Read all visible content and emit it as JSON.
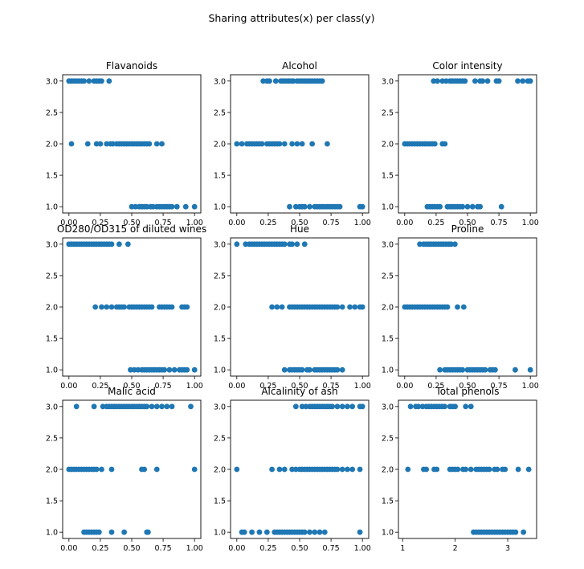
{
  "suptitle": "Sharing attributes(x) per class(y)",
  "colors": {
    "marker": "#1f77b4"
  },
  "chart_data": [
    {
      "type": "scatter",
      "title": "Flavanoids",
      "xlim": [
        -0.05,
        1.05
      ],
      "ylim": [
        0.9,
        3.1
      ],
      "xticks": [
        0.0,
        0.25,
        0.5,
        0.75,
        1.0
      ],
      "xtick_labels": [
        "0.00",
        "0.25",
        "0.50",
        "0.75",
        "1.00"
      ],
      "yticks": [
        1.0,
        1.5,
        2.0,
        2.5,
        3.0
      ],
      "ytick_labels": [
        "1.0",
        "1.5",
        "2.0",
        "2.5",
        "3.0"
      ],
      "series": [
        {
          "y": 3,
          "x": [
            0.0,
            0.02,
            0.04,
            0.06,
            0.08,
            0.1,
            0.12,
            0.16,
            0.2,
            0.22,
            0.24,
            0.26,
            0.32
          ]
        },
        {
          "y": 2,
          "x": [
            0.02,
            0.15,
            0.22,
            0.25,
            0.3,
            0.33,
            0.35,
            0.38,
            0.4,
            0.42,
            0.44,
            0.46,
            0.48,
            0.5,
            0.52,
            0.54,
            0.56,
            0.58,
            0.6,
            0.62,
            0.64,
            0.7,
            0.74
          ]
        },
        {
          "y": 1,
          "x": [
            0.5,
            0.53,
            0.56,
            0.58,
            0.6,
            0.62,
            0.65,
            0.67,
            0.7,
            0.72,
            0.74,
            0.76,
            0.78,
            0.8,
            0.82,
            0.86,
            0.93,
            1.0
          ]
        }
      ]
    },
    {
      "type": "scatter",
      "title": "Alcohol",
      "xlim": [
        -0.05,
        1.05
      ],
      "ylim": [
        0.9,
        3.1
      ],
      "xticks": [
        0.0,
        0.25,
        0.5,
        0.75,
        1.0
      ],
      "xtick_labels": [
        "0.00",
        "0.25",
        "0.50",
        "0.75",
        "1.00"
      ],
      "yticks": [
        1.0,
        1.5,
        2.0,
        2.5,
        3.0
      ],
      "ytick_labels": [
        "1.0",
        "1.5",
        "2.0",
        "2.5",
        "3.0"
      ],
      "series": [
        {
          "y": 3,
          "x": [
            0.21,
            0.24,
            0.26,
            0.31,
            0.35,
            0.37,
            0.39,
            0.41,
            0.43,
            0.45,
            0.48,
            0.5,
            0.52,
            0.54,
            0.56,
            0.58,
            0.6,
            0.62,
            0.64,
            0.66,
            0.68
          ]
        },
        {
          "y": 2,
          "x": [
            0.0,
            0.04,
            0.08,
            0.1,
            0.12,
            0.14,
            0.16,
            0.18,
            0.2,
            0.24,
            0.26,
            0.28,
            0.3,
            0.32,
            0.34,
            0.38,
            0.44,
            0.48,
            0.52,
            0.6,
            0.72
          ]
        },
        {
          "y": 1,
          "x": [
            0.42,
            0.47,
            0.5,
            0.52,
            0.54,
            0.58,
            0.62,
            0.64,
            0.66,
            0.68,
            0.7,
            0.72,
            0.74,
            0.76,
            0.78,
            0.8,
            0.82,
            0.98,
            1.0
          ]
        }
      ]
    },
    {
      "type": "scatter",
      "title": "Color intensity",
      "xlim": [
        -0.05,
        1.05
      ],
      "ylim": [
        0.9,
        3.1
      ],
      "xticks": [
        0.0,
        0.25,
        0.5,
        0.75,
        1.0
      ],
      "xtick_labels": [
        "0.00",
        "0.25",
        "0.50",
        "0.75",
        "1.00"
      ],
      "yticks": [
        1.0,
        1.5,
        2.0,
        2.5,
        3.0
      ],
      "ytick_labels": [
        "1.0",
        "1.5",
        "2.0",
        "2.5",
        "3.0"
      ],
      "series": [
        {
          "y": 3,
          "x": [
            0.23,
            0.26,
            0.3,
            0.33,
            0.36,
            0.38,
            0.4,
            0.42,
            0.44,
            0.46,
            0.48,
            0.56,
            0.6,
            0.62,
            0.66,
            0.73,
            0.75,
            0.9,
            0.94,
            0.98,
            1.0
          ]
        },
        {
          "y": 2,
          "x": [
            0.0,
            0.02,
            0.04,
            0.06,
            0.08,
            0.1,
            0.12,
            0.14,
            0.16,
            0.18,
            0.2,
            0.22,
            0.24,
            0.3,
            0.32
          ]
        },
        {
          "y": 1,
          "x": [
            0.18,
            0.2,
            0.22,
            0.24,
            0.26,
            0.28,
            0.34,
            0.36,
            0.38,
            0.4,
            0.42,
            0.44,
            0.46,
            0.5,
            0.54,
            0.58,
            0.6,
            0.77
          ]
        }
      ]
    },
    {
      "type": "scatter",
      "title": "OD280/OD315 of diluted wines",
      "xlim": [
        -0.05,
        1.05
      ],
      "ylim": [
        0.9,
        3.1
      ],
      "xticks": [
        0.0,
        0.25,
        0.5,
        0.75,
        1.0
      ],
      "xtick_labels": [
        "0.00",
        "0.25",
        "0.50",
        "0.75",
        "1.00"
      ],
      "yticks": [
        1.0,
        1.5,
        2.0,
        2.5,
        3.0
      ],
      "ytick_labels": [
        "1.0",
        "1.5",
        "2.0",
        "2.5",
        "3.0"
      ],
      "series": [
        {
          "y": 3,
          "x": [
            0.0,
            0.02,
            0.04,
            0.06,
            0.08,
            0.1,
            0.12,
            0.14,
            0.16,
            0.18,
            0.2,
            0.22,
            0.24,
            0.26,
            0.28,
            0.3,
            0.32,
            0.34,
            0.4,
            0.47
          ]
        },
        {
          "y": 2,
          "x": [
            0.21,
            0.26,
            0.3,
            0.34,
            0.38,
            0.4,
            0.42,
            0.44,
            0.48,
            0.5,
            0.52,
            0.54,
            0.56,
            0.58,
            0.6,
            0.62,
            0.64,
            0.66,
            0.72,
            0.74,
            0.76,
            0.78,
            0.8,
            0.82,
            0.9,
            0.92,
            0.94
          ]
        },
        {
          "y": 1,
          "x": [
            0.49,
            0.52,
            0.55,
            0.58,
            0.6,
            0.62,
            0.64,
            0.66,
            0.68,
            0.7,
            0.72,
            0.74,
            0.76,
            0.8,
            0.84,
            0.88,
            0.9,
            0.92,
            0.94,
            1.0
          ]
        }
      ]
    },
    {
      "type": "scatter",
      "title": "Hue",
      "xlim": [
        -0.05,
        1.05
      ],
      "ylim": [
        0.9,
        3.1
      ],
      "xticks": [
        0.0,
        0.25,
        0.5,
        0.75,
        1.0
      ],
      "xtick_labels": [
        "0.00",
        "0.25",
        "0.50",
        "0.75",
        "1.00"
      ],
      "yticks": [
        1.0,
        1.5,
        2.0,
        2.5,
        3.0
      ],
      "ytick_labels": [
        "1.0",
        "1.5",
        "2.0",
        "2.5",
        "3.0"
      ],
      "series": [
        {
          "y": 3,
          "x": [
            0.0,
            0.07,
            0.1,
            0.12,
            0.14,
            0.16,
            0.18,
            0.2,
            0.22,
            0.24,
            0.26,
            0.28,
            0.3,
            0.32,
            0.34,
            0.36,
            0.38,
            0.42,
            0.44,
            0.48,
            0.54
          ]
        },
        {
          "y": 2,
          "x": [
            0.28,
            0.32,
            0.36,
            0.42,
            0.44,
            0.46,
            0.48,
            0.5,
            0.52,
            0.54,
            0.56,
            0.58,
            0.6,
            0.62,
            0.64,
            0.66,
            0.68,
            0.7,
            0.72,
            0.74,
            0.76,
            0.78,
            0.8,
            0.84,
            0.9,
            0.94,
            0.98,
            1.0
          ]
        },
        {
          "y": 1,
          "x": [
            0.38,
            0.42,
            0.44,
            0.46,
            0.48,
            0.5,
            0.52,
            0.56,
            0.58,
            0.62,
            0.64,
            0.66,
            0.68,
            0.7,
            0.72,
            0.74,
            0.76,
            0.78,
            0.8,
            0.84
          ]
        }
      ]
    },
    {
      "type": "scatter",
      "title": "Proline",
      "xlim": [
        -0.05,
        1.05
      ],
      "ylim": [
        0.9,
        3.1
      ],
      "xticks": [
        0.0,
        0.25,
        0.5,
        0.75,
        1.0
      ],
      "xtick_labels": [
        "0.00",
        "0.25",
        "0.50",
        "0.75",
        "1.00"
      ],
      "yticks": [
        1.0,
        1.5,
        2.0,
        2.5,
        3.0
      ],
      "ytick_labels": [
        "1.0",
        "1.5",
        "2.0",
        "2.5",
        "3.0"
      ],
      "series": [
        {
          "y": 3,
          "x": [
            0.12,
            0.15,
            0.17,
            0.19,
            0.21,
            0.23,
            0.25,
            0.27,
            0.29,
            0.31,
            0.33,
            0.35,
            0.37,
            0.4
          ]
        },
        {
          "y": 2,
          "x": [
            0.0,
            0.02,
            0.04,
            0.06,
            0.08,
            0.1,
            0.12,
            0.14,
            0.16,
            0.18,
            0.2,
            0.22,
            0.24,
            0.26,
            0.28,
            0.3,
            0.32,
            0.34,
            0.42,
            0.47
          ]
        },
        {
          "y": 1,
          "x": [
            0.28,
            0.32,
            0.34,
            0.36,
            0.38,
            0.4,
            0.42,
            0.44,
            0.46,
            0.5,
            0.52,
            0.54,
            0.56,
            0.58,
            0.6,
            0.62,
            0.64,
            0.68,
            0.7,
            0.72,
            0.88,
            1.0
          ]
        }
      ]
    },
    {
      "type": "scatter",
      "title": "Malic acid",
      "xlim": [
        -0.05,
        1.05
      ],
      "ylim": [
        0.9,
        3.1
      ],
      "xticks": [
        0.0,
        0.25,
        0.5,
        0.75,
        1.0
      ],
      "xtick_labels": [
        "0.00",
        "0.25",
        "0.50",
        "0.75",
        "1.00"
      ],
      "yticks": [
        1.0,
        1.5,
        2.0,
        2.5,
        3.0
      ],
      "ytick_labels": [
        "1.0",
        "1.5",
        "2.0",
        "2.5",
        "3.0"
      ],
      "series": [
        {
          "y": 3,
          "x": [
            0.06,
            0.2,
            0.27,
            0.3,
            0.32,
            0.34,
            0.36,
            0.38,
            0.4,
            0.42,
            0.44,
            0.46,
            0.48,
            0.5,
            0.52,
            0.54,
            0.56,
            0.58,
            0.6,
            0.62,
            0.66,
            0.7,
            0.74,
            0.78,
            0.82,
            0.97
          ]
        },
        {
          "y": 2,
          "x": [
            0.0,
            0.02,
            0.04,
            0.06,
            0.08,
            0.1,
            0.12,
            0.14,
            0.16,
            0.18,
            0.2,
            0.22,
            0.26,
            0.34,
            0.58,
            0.6,
            0.7,
            1.0
          ]
        },
        {
          "y": 1,
          "x": [
            0.12,
            0.14,
            0.16,
            0.18,
            0.2,
            0.22,
            0.24,
            0.34,
            0.44,
            0.62,
            0.63
          ]
        }
      ]
    },
    {
      "type": "scatter",
      "title": "Alcalinity of ash",
      "xlim": [
        -0.05,
        1.05
      ],
      "ylim": [
        0.9,
        3.1
      ],
      "xticks": [
        0.0,
        0.25,
        0.5,
        0.75,
        1.0
      ],
      "xtick_labels": [
        "0.00",
        "0.25",
        "0.50",
        "0.75",
        "1.00"
      ],
      "yticks": [
        1.0,
        1.5,
        2.0,
        2.5,
        3.0
      ],
      "ytick_labels": [
        "1.0",
        "1.5",
        "2.0",
        "2.5",
        "3.0"
      ],
      "series": [
        {
          "y": 3,
          "x": [
            0.47,
            0.52,
            0.55,
            0.58,
            0.6,
            0.62,
            0.64,
            0.66,
            0.68,
            0.7,
            0.72,
            0.74,
            0.76,
            0.8,
            0.84,
            0.88,
            0.92,
            0.98,
            1.0
          ]
        },
        {
          "y": 2,
          "x": [
            0.0,
            0.28,
            0.34,
            0.38,
            0.44,
            0.47,
            0.5,
            0.52,
            0.54,
            0.56,
            0.58,
            0.6,
            0.62,
            0.64,
            0.66,
            0.68,
            0.7,
            0.72,
            0.74,
            0.76,
            0.78,
            0.8,
            0.84,
            0.88,
            0.92,
            0.98
          ]
        },
        {
          "y": 1,
          "x": [
            0.04,
            0.06,
            0.12,
            0.18,
            0.24,
            0.3,
            0.32,
            0.34,
            0.36,
            0.38,
            0.4,
            0.42,
            0.44,
            0.46,
            0.48,
            0.5,
            0.52,
            0.54,
            0.58,
            0.62,
            0.66,
            0.7,
            0.98
          ]
        }
      ]
    },
    {
      "type": "scatter",
      "title": "Total phenols",
      "xlim": [
        0.92,
        3.55
      ],
      "ylim": [
        0.9,
        3.1
      ],
      "xticks": [
        1,
        2,
        3
      ],
      "xtick_labels": [
        "1",
        "2",
        "3"
      ],
      "yticks": [
        1.0,
        1.5,
        2.0,
        2.5,
        3.0
      ],
      "ytick_labels": [
        "1.0",
        "1.5",
        "2.0",
        "2.5",
        "3.0"
      ],
      "series": [
        {
          "y": 3,
          "x": [
            1.15,
            1.25,
            1.3,
            1.38,
            1.45,
            1.5,
            1.55,
            1.6,
            1.65,
            1.7,
            1.75,
            1.8,
            1.9,
            1.95,
            2.0,
            2.2,
            2.3
          ]
        },
        {
          "y": 2,
          "x": [
            1.1,
            1.4,
            1.45,
            1.6,
            1.65,
            1.9,
            1.95,
            2.0,
            2.05,
            2.15,
            2.2,
            2.3,
            2.4,
            2.45,
            2.5,
            2.55,
            2.6,
            2.65,
            2.75,
            2.8,
            2.9,
            2.95,
            3.2,
            3.4
          ]
        },
        {
          "y": 1,
          "x": [
            2.35,
            2.4,
            2.45,
            2.5,
            2.55,
            2.6,
            2.65,
            2.7,
            2.75,
            2.8,
            2.85,
            2.9,
            2.95,
            3.0,
            3.05,
            3.1,
            3.15,
            3.3
          ]
        }
      ]
    }
  ]
}
